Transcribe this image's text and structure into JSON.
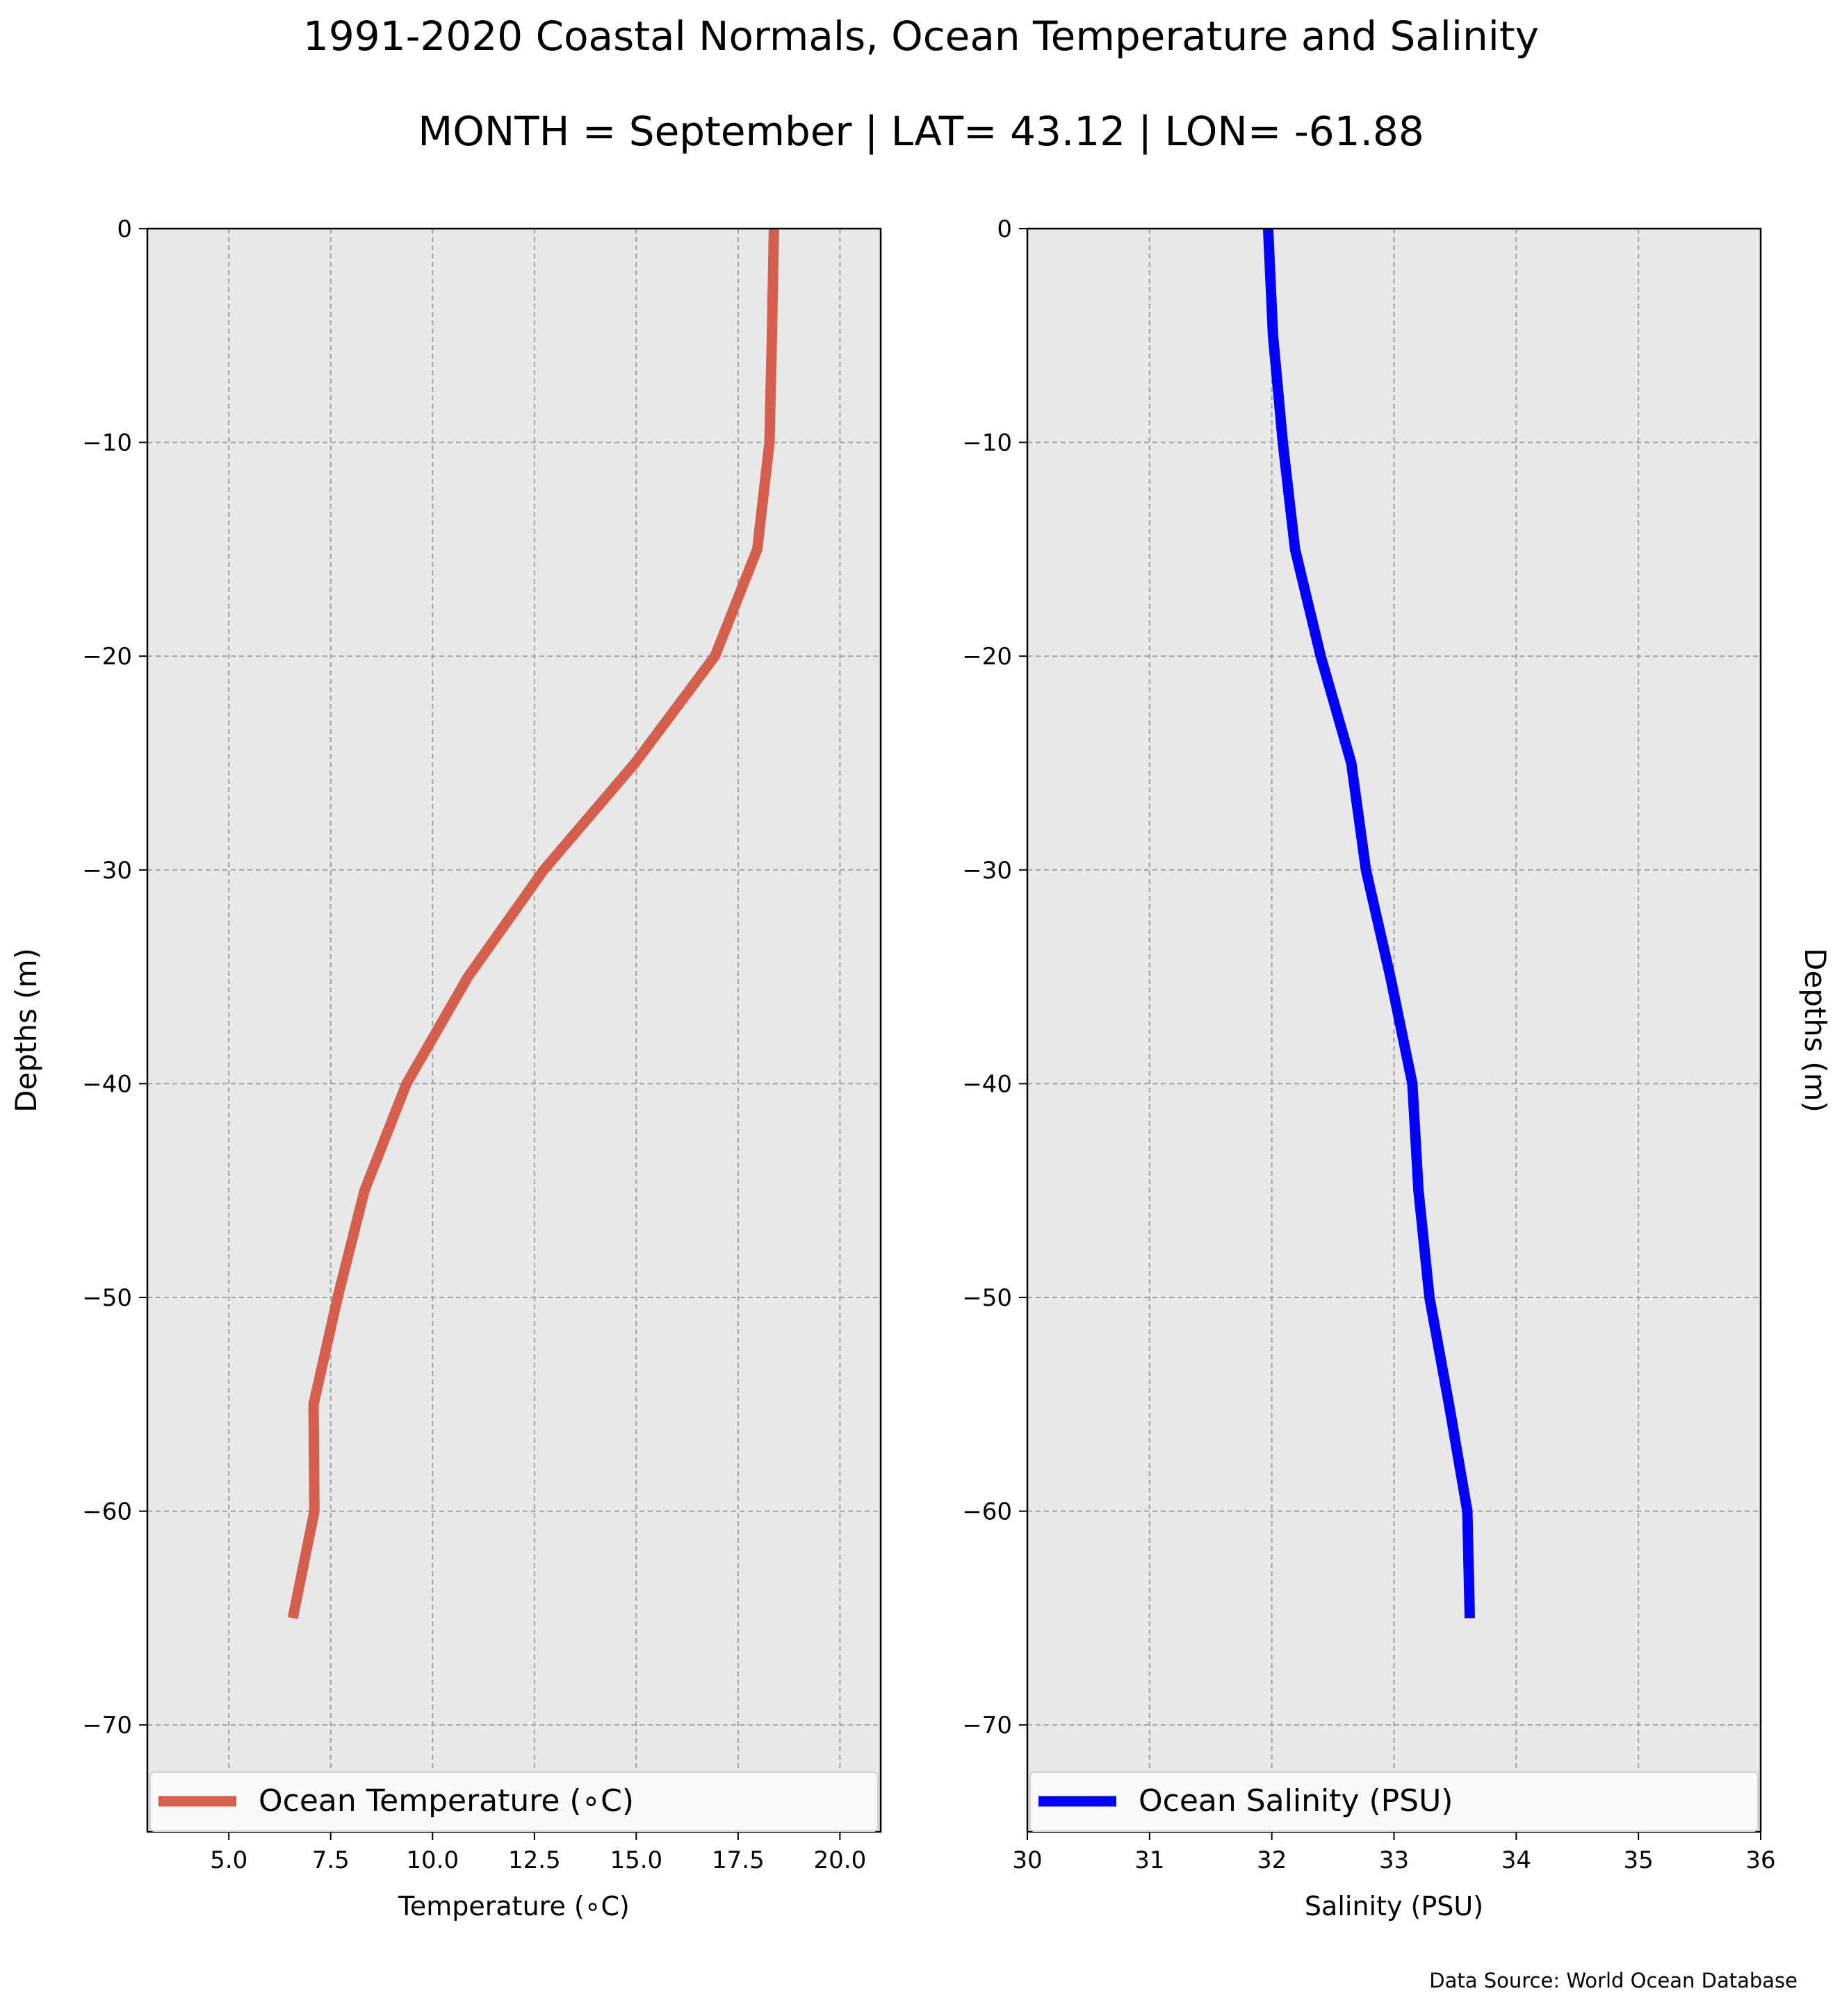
{
  "figure": {
    "title": "1991-2020 Coastal Normals, Ocean Temperature and Salinity",
    "subtitle": "MONTH = September | LAT= 43.12 | LON= -61.88",
    "source_note": "Data Source: World Ocean Database"
  },
  "chart_data": [
    {
      "type": "line",
      "xlabel": "Temperature ($^\\circ$C)",
      "xlabel_display": "Temperature (∘C)",
      "ylabel": "Depths (m)",
      "xlim": [
        3.0,
        21.0
      ],
      "ylim": [
        -75.0,
        0.0
      ],
      "xticks": [
        5.0,
        7.5,
        10.0,
        12.5,
        15.0,
        17.5,
        20.0
      ],
      "xtick_labels": [
        "5.0",
        "7.5",
        "10.0",
        "12.5",
        "15.0",
        "17.5",
        "20.0"
      ],
      "yticks": [
        0,
        -10,
        -20,
        -30,
        -40,
        -50,
        -60,
        -70
      ],
      "ytick_labels": [
        "0",
        "−10",
        "−20",
        "−30",
        "−40",
        "−50",
        "−60",
        "−70"
      ],
      "grid": true,
      "legend_position": "bottom",
      "series": [
        {
          "name": "Ocean Temperature (∘C)",
          "color": "#d35f4c",
          "x": [
            18.38,
            18.33,
            18.27,
            17.97,
            16.93,
            14.97,
            12.73,
            10.87,
            9.36,
            8.33,
            7.67,
            7.08,
            7.1,
            6.57
          ],
          "y": [
            0,
            -5,
            -10,
            -15,
            -20,
            -25,
            -30,
            -35,
            -40,
            -45,
            -50,
            -55,
            -60,
            -65
          ]
        }
      ]
    },
    {
      "type": "line",
      "xlabel": "Salinity (PSU)",
      "ylabel": "Depths (m)",
      "xlim": [
        30,
        36
      ],
      "ylim": [
        -75.0,
        0.0
      ],
      "xticks": [
        30,
        31,
        32,
        33,
        34,
        35,
        36
      ],
      "xtick_labels": [
        "30",
        "31",
        "32",
        "33",
        "34",
        "35",
        "36"
      ],
      "yticks": [
        0,
        -10,
        -20,
        -30,
        -40,
        -50,
        -60,
        -70
      ],
      "ytick_labels": [
        "0",
        "−10",
        "−20",
        "−30",
        "−40",
        "−50",
        "−60",
        "−70"
      ],
      "grid": true,
      "legend_position": "bottom",
      "series": [
        {
          "name": "Ocean Salinity (PSU)",
          "color": "#0000ff",
          "x": [
            31.97,
            32.01,
            32.09,
            32.19,
            32.4,
            32.65,
            32.77,
            32.97,
            33.15,
            33.2,
            33.29,
            33.45,
            33.6,
            33.62
          ],
          "y": [
            0,
            -5,
            -10,
            -15,
            -20,
            -25,
            -30,
            -35,
            -40,
            -45,
            -50,
            -55,
            -60,
            -65
          ]
        }
      ]
    }
  ]
}
